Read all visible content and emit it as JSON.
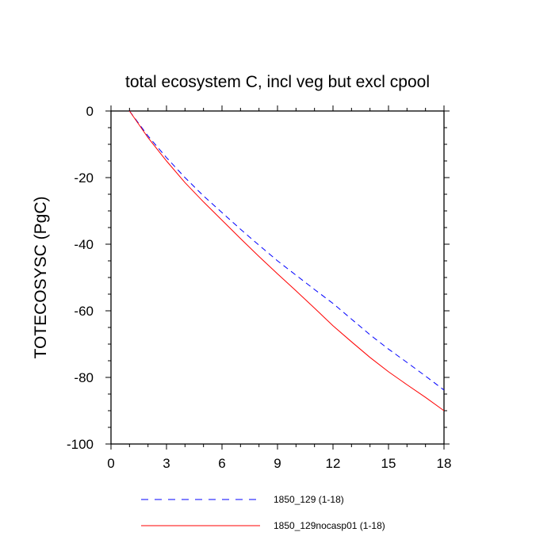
{
  "chart_data": {
    "type": "line",
    "title": "total ecosystem C, incl veg but excl cpool",
    "xlabel": "",
    "ylabel": "TOTECOSYSC  (PgC)",
    "xlim": [
      0,
      18
    ],
    "ylim": [
      -100,
      0
    ],
    "xticks": [
      0,
      3,
      6,
      9,
      12,
      15,
      18
    ],
    "yticks": [
      0,
      -20,
      -40,
      -60,
      -80,
      -100
    ],
    "xtick_labels": [
      "0",
      "3",
      "6",
      "9",
      "12",
      "15",
      "18"
    ],
    "ytick_labels": [
      "0",
      "-20",
      "-40",
      "-60",
      "-80",
      "-100"
    ],
    "x": [
      1,
      2,
      3,
      4,
      5,
      6,
      7,
      8,
      9,
      10,
      11,
      12,
      13,
      14,
      15,
      16,
      17,
      18
    ],
    "series": [
      {
        "name": "1850_129 (1-18)",
        "color": "#0000ff",
        "style": "dashed",
        "values": [
          0,
          -7.5,
          -14.0,
          -20.0,
          -25.5,
          -30.5,
          -35.5,
          -40.3,
          -45.0,
          -49.3,
          -53.6,
          -57.8,
          -62.5,
          -67.2,
          -71.5,
          -75.5,
          -79.6,
          -83.8
        ]
      },
      {
        "name": "1850_129nocasp01 (1-18)",
        "color": "#ff0000",
        "style": "solid",
        "values": [
          0,
          -8.0,
          -15.0,
          -21.5,
          -27.3,
          -32.8,
          -38.3,
          -43.7,
          -48.9,
          -54.0,
          -59.2,
          -64.5,
          -69.3,
          -74.0,
          -78.3,
          -82.2,
          -86.0,
          -90.0
        ]
      }
    ],
    "legend": [
      "1850_129 (1-18)",
      "1850_129nocasp01 (1-18)"
    ],
    "legend_position": "bottom-left",
    "grid": false
  }
}
